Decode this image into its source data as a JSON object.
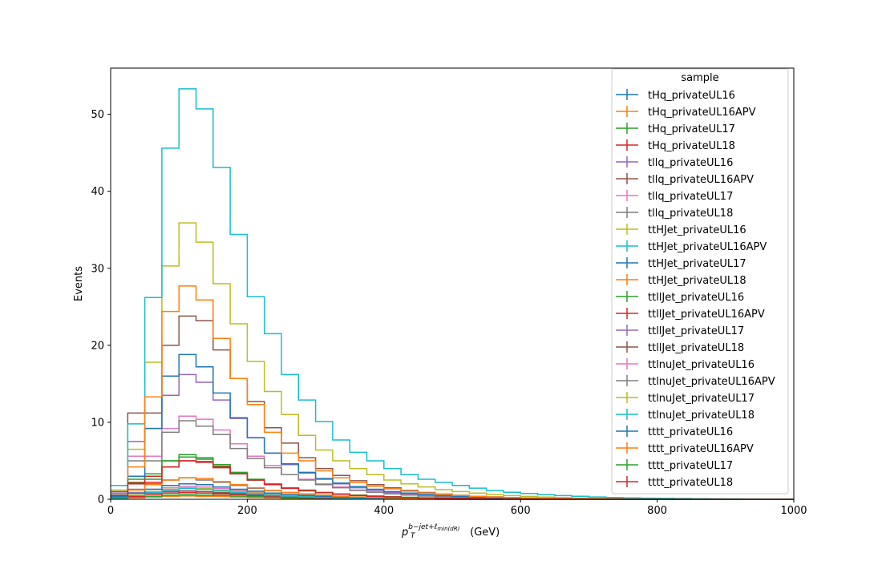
{
  "chart_data": {
    "type": "line",
    "step": true,
    "x_edges": [
      0,
      25,
      50,
      75,
      100,
      125,
      150,
      175,
      200,
      225,
      250,
      275,
      300,
      325,
      350,
      375,
      400,
      425,
      450,
      475,
      500,
      525,
      550,
      575,
      600,
      625,
      650,
      675,
      700,
      725,
      750,
      775,
      800,
      825,
      850,
      875,
      900,
      925,
      950,
      975,
      1000
    ],
    "xlim": [
      0,
      1000
    ],
    "ylim": [
      0,
      56
    ],
    "x_ticks": [
      0,
      200,
      400,
      600,
      800,
      1000
    ],
    "y_ticks": [
      0,
      10,
      20,
      30,
      40,
      50
    ],
    "ylabel": "Events",
    "xlabel_main": "p",
    "xlabel_sub": "T",
    "xlabel_sup": "b−jet+ℓ",
    "xlabel_sup_sub": "min(dR)",
    "xlabel_unit": " (GeV)",
    "legend_title": "sample",
    "legend_position": "top-right",
    "grid": false,
    "series": [
      {
        "name": "tHq_privateUL16",
        "color": "#1f77b4",
        "values": [
          0.1,
          0.2,
          0.3,
          0.4,
          0.45,
          0.42,
          0.38,
          0.32,
          0.26,
          0.2,
          0.15,
          0.11,
          0.08,
          0.06,
          0.04,
          0.03,
          0.02,
          0.02,
          0.01,
          0.01,
          0.01,
          0.01,
          0,
          0,
          0,
          0,
          0,
          0,
          0,
          0,
          0,
          0,
          0,
          0,
          0,
          0,
          0,
          0,
          0,
          0
        ]
      },
      {
        "name": "tHq_privateUL16APV",
        "color": "#ff7f0e",
        "values": [
          0.1,
          0.2,
          0.3,
          0.4,
          0.43,
          0.4,
          0.36,
          0.3,
          0.24,
          0.19,
          0.14,
          0.1,
          0.07,
          0.05,
          0.04,
          0.03,
          0.02,
          0.01,
          0.01,
          0.01,
          0.01,
          0,
          0,
          0,
          0,
          0,
          0,
          0,
          0,
          0,
          0,
          0,
          0,
          0,
          0,
          0,
          0,
          0,
          0,
          0
        ]
      },
      {
        "name": "tHq_privateUL17",
        "color": "#2ca02c",
        "values": [
          0.1,
          0.3,
          0.4,
          0.55,
          0.6,
          0.55,
          0.5,
          0.42,
          0.34,
          0.26,
          0.2,
          0.15,
          0.11,
          0.08,
          0.06,
          0.04,
          0.03,
          0.02,
          0.02,
          0.01,
          0.01,
          0.01,
          0,
          0,
          0,
          0,
          0,
          0,
          0,
          0,
          0,
          0,
          0,
          0,
          0,
          0,
          0,
          0,
          0,
          0
        ]
      },
      {
        "name": "tHq_privateUL18",
        "color": "#d62728",
        "values": [
          0.2,
          0.4,
          0.6,
          0.8,
          0.85,
          0.8,
          0.7,
          0.6,
          0.48,
          0.37,
          0.28,
          0.21,
          0.15,
          0.11,
          0.08,
          0.06,
          0.04,
          0.03,
          0.02,
          0.02,
          0.01,
          0.01,
          0.01,
          0,
          0,
          0,
          0,
          0,
          0,
          0,
          0,
          0,
          0,
          0,
          0,
          0,
          0,
          0,
          0,
          0
        ]
      },
      {
        "name": "tllq_privateUL16",
        "color": "#9467bd",
        "values": [
          0.2,
          0.5,
          0.8,
          1.0,
          1.1,
          1.0,
          0.9,
          0.75,
          0.6,
          0.45,
          0.35,
          0.27,
          0.2,
          0.15,
          0.11,
          0.08,
          0.06,
          0.04,
          0.03,
          0.02,
          0.02,
          0.01,
          0.01,
          0.01,
          0,
          0,
          0,
          0,
          0,
          0,
          0,
          0,
          0,
          0,
          0,
          0,
          0,
          0,
          0,
          0
        ]
      },
      {
        "name": "tllq_privateUL16APV",
        "color": "#8c564b",
        "values": [
          0.2,
          0.5,
          0.8,
          1.0,
          1.05,
          1.0,
          0.85,
          0.7,
          0.55,
          0.42,
          0.32,
          0.24,
          0.18,
          0.13,
          0.1,
          0.07,
          0.05,
          0.04,
          0.03,
          0.02,
          0.02,
          0.01,
          0.01,
          0,
          0,
          0,
          0,
          0,
          0,
          0,
          0,
          0,
          0,
          0,
          0,
          0,
          0,
          0,
          0,
          0
        ]
      },
      {
        "name": "tllq_privateUL17",
        "color": "#e377c2",
        "values": [
          0.3,
          0.9,
          1.3,
          1.5,
          1.7,
          1.6,
          1.4,
          1.15,
          0.9,
          0.7,
          0.55,
          0.42,
          0.32,
          0.24,
          0.18,
          0.13,
          0.1,
          0.07,
          0.05,
          0.04,
          0.03,
          0.02,
          0.02,
          0.01,
          0.01,
          0,
          0,
          0,
          0,
          0,
          0,
          0,
          0,
          0,
          0,
          0,
          0,
          0,
          0,
          0
        ]
      },
      {
        "name": "tllq_privateUL18",
        "color": "#7f7f7f",
        "values": [
          0.4,
          1.3,
          2.0,
          2.5,
          2.8,
          2.5,
          2.2,
          1.8,
          1.4,
          1.1,
          0.85,
          0.65,
          0.5,
          0.38,
          0.28,
          0.21,
          0.16,
          0.12,
          0.09,
          0.07,
          0.05,
          0.04,
          0.03,
          0.02,
          0.02,
          0.01,
          0.01,
          0,
          0,
          0,
          0,
          0,
          0,
          0,
          0,
          0,
          0,
          0,
          0,
          0
        ]
      },
      {
        "name": "ttHJet_privateUL16",
        "color": "#bcbd22",
        "values": [
          0.2,
          0.6,
          1.0,
          1.3,
          1.5,
          1.4,
          1.2,
          1.0,
          0.8,
          0.6,
          0.47,
          0.36,
          0.28,
          0.21,
          0.16,
          0.12,
          0.09,
          0.07,
          0.05,
          0.04,
          0.03,
          0.02,
          0.02,
          0.01,
          0.01,
          0,
          0,
          0,
          0,
          0,
          0,
          0,
          0,
          0,
          0,
          0,
          0,
          0,
          0,
          0
        ]
      },
      {
        "name": "ttHJet_privateUL16APV",
        "color": "#17becf",
        "values": [
          0.2,
          0.5,
          0.9,
          1.2,
          1.4,
          1.3,
          1.1,
          0.9,
          0.72,
          0.55,
          0.42,
          0.32,
          0.25,
          0.19,
          0.14,
          0.11,
          0.08,
          0.06,
          0.05,
          0.04,
          0.03,
          0.02,
          0.02,
          0.01,
          0.01,
          0,
          0,
          0,
          0,
          0,
          0,
          0,
          0,
          0,
          0,
          0,
          0,
          0,
          0,
          0
        ]
      },
      {
        "name": "ttHJet_privateUL17",
        "color": "#1f77b4",
        "values": [
          0.3,
          0.8,
          1.3,
          1.8,
          2.0,
          1.9,
          1.6,
          1.3,
          1.05,
          0.8,
          0.62,
          0.48,
          0.37,
          0.28,
          0.21,
          0.16,
          0.12,
          0.09,
          0.07,
          0.05,
          0.04,
          0.03,
          0.02,
          0.02,
          0.01,
          0.01,
          0,
          0,
          0,
          0,
          0,
          0,
          0,
          0,
          0,
          0,
          0,
          0,
          0,
          0
        ]
      },
      {
        "name": "ttHJet_privateUL18",
        "color": "#ff7f0e",
        "values": [
          0.4,
          1.2,
          1.9,
          2.5,
          2.8,
          2.7,
          2.3,
          1.9,
          1.5,
          1.15,
          0.9,
          0.7,
          0.54,
          0.41,
          0.31,
          0.23,
          0.18,
          0.13,
          0.1,
          0.08,
          0.06,
          0.05,
          0.04,
          0.03,
          0.02,
          0.02,
          0.01,
          0.01,
          0,
          0,
          0,
          0,
          0,
          0,
          0,
          0,
          0,
          0,
          0,
          0
        ]
      },
      {
        "name": "ttllJet_privateUL16",
        "color": "#2ca02c",
        "values": [
          0.5,
          2.2,
          3.3,
          5.0,
          5.5,
          5.2,
          4.5,
          3.5,
          2.6,
          2.0,
          1.5,
          1.2,
          0.9,
          0.7,
          0.55,
          0.43,
          0.34,
          0.26,
          0.2,
          0.16,
          0.12,
          0.09,
          0.07,
          0.05,
          0.04,
          0.03,
          0.02,
          0.02,
          0.01,
          0.01,
          0,
          0,
          0,
          0,
          0,
          0,
          0,
          0,
          0,
          0
        ]
      },
      {
        "name": "ttllJet_privateUL16APV",
        "color": "#d62728",
        "values": [
          0.5,
          2.0,
          3.0,
          4.2,
          5.0,
          4.9,
          4.1,
          3.3,
          2.5,
          1.9,
          1.45,
          1.1,
          0.85,
          0.65,
          0.5,
          0.4,
          0.31,
          0.24,
          0.19,
          0.15,
          0.11,
          0.09,
          0.07,
          0.05,
          0.04,
          0.03,
          0.02,
          0.02,
          0.01,
          0.01,
          0,
          0,
          0,
          0,
          0,
          0,
          0,
          0,
          0,
          0
        ]
      },
      {
        "name": "ttllJet_privateUL17",
        "color": "#9467bd",
        "values": [
          0.8,
          7.5,
          9.2,
          13.5,
          16.2,
          15.2,
          12.9,
          10.5,
          8.0,
          6.0,
          4.5,
          3.4,
          2.6,
          2.0,
          1.5,
          1.15,
          0.88,
          0.68,
          0.52,
          0.4,
          0.31,
          0.24,
          0.18,
          0.14,
          0.1,
          0.08,
          0.06,
          0.05,
          0.04,
          0.03,
          0.02,
          0.02,
          0.01,
          0.01,
          0.01,
          0,
          0,
          0,
          0,
          0
        ]
      },
      {
        "name": "ttllJet_privateUL18",
        "color": "#8c564b",
        "values": [
          1.0,
          11.2,
          11.2,
          20.0,
          23.8,
          23.2,
          19.4,
          15.7,
          12.7,
          9.3,
          7.3,
          5.4,
          4.0,
          3.1,
          2.4,
          1.9,
          1.5,
          1.15,
          0.88,
          0.68,
          0.52,
          0.4,
          0.31,
          0.24,
          0.18,
          0.14,
          0.11,
          0.08,
          0.06,
          0.05,
          0.04,
          0.03,
          0.02,
          0.02,
          0.01,
          0.01,
          0,
          0,
          0,
          0
        ]
      },
      {
        "name": "ttlnuJet_privateUL16",
        "color": "#e377c2",
        "values": [
          0.6,
          5.6,
          5.6,
          9.2,
          10.8,
          10.4,
          9.0,
          7.2,
          5.6,
          4.4,
          3.2,
          2.6,
          2.0,
          1.6,
          1.2,
          0.95,
          0.75,
          0.58,
          0.45,
          0.35,
          0.27,
          0.21,
          0.16,
          0.12,
          0.09,
          0.07,
          0.05,
          0.04,
          0.03,
          0.02,
          0.02,
          0.01,
          0.01,
          0.01,
          0,
          0,
          0,
          0,
          0,
          0
        ]
      },
      {
        "name": "ttlnuJet_privateUL16APV",
        "color": "#7f7f7f",
        "values": [
          0.6,
          5.0,
          5.0,
          8.7,
          10.2,
          9.5,
          8.4,
          6.6,
          5.3,
          4.1,
          3.2,
          2.5,
          1.9,
          1.5,
          1.15,
          0.9,
          0.7,
          0.55,
          0.42,
          0.33,
          0.26,
          0.2,
          0.15,
          0.12,
          0.09,
          0.07,
          0.05,
          0.04,
          0.03,
          0.02,
          0.02,
          0.01,
          0.01,
          0.01,
          0,
          0,
          0,
          0,
          0,
          0
        ]
      },
      {
        "name": "ttlnuJet_privateUL17",
        "color": "#bcbd22",
        "values": [
          1.2,
          6.5,
          17.8,
          30.3,
          35.9,
          33.4,
          28.0,
          22.8,
          17.9,
          14.0,
          11.0,
          8.3,
          6.4,
          5.0,
          4.0,
          3.2,
          2.5,
          2.0,
          1.6,
          1.25,
          1.0,
          0.8,
          0.62,
          0.48,
          0.37,
          0.29,
          0.22,
          0.17,
          0.13,
          0.1,
          0.08,
          0.06,
          0.05,
          0.04,
          0.03,
          0.02,
          0.02,
          0.01,
          0.01,
          0.01
        ]
      },
      {
        "name": "ttlnuJet_privateUL18",
        "color": "#17becf",
        "values": [
          1.8,
          9.8,
          26.2,
          45.6,
          53.3,
          50.7,
          43.1,
          34.4,
          26.3,
          21.5,
          16.2,
          12.9,
          10.1,
          7.7,
          6.1,
          5.0,
          4.0,
          3.2,
          2.6,
          2.2,
          1.8,
          1.45,
          1.15,
          0.92,
          0.75,
          0.6,
          0.48,
          0.38,
          0.3,
          0.24,
          0.19,
          0.15,
          0.12,
          0.1,
          0.08,
          0.06,
          0.05,
          0.04,
          0.03,
          0.02
        ]
      },
      {
        "name": "tttt_privateUL16",
        "color": "#1f77b4",
        "values": [
          0.4,
          3.0,
          9.2,
          16.0,
          18.8,
          17.2,
          13.8,
          10.6,
          8.0,
          6.0,
          4.6,
          3.5,
          2.7,
          2.1,
          1.65,
          1.3,
          1.0,
          0.8,
          0.62,
          0.48,
          0.38,
          0.3,
          0.23,
          0.18,
          0.14,
          0.11,
          0.08,
          0.06,
          0.05,
          0.04,
          0.03,
          0.02,
          0.02,
          0.01,
          0.01,
          0.01,
          0,
          0,
          0,
          0
        ]
      },
      {
        "name": "tttt_privateUL16APV",
        "color": "#ff7f0e",
        "values": [
          0.5,
          4.2,
          13.3,
          24.4,
          27.7,
          25.9,
          20.9,
          15.7,
          12.3,
          8.7,
          6.0,
          5.0,
          3.7,
          2.8,
          2.15,
          1.7,
          1.35,
          1.05,
          0.82,
          0.64,
          0.5,
          0.39,
          0.3,
          0.23,
          0.18,
          0.14,
          0.11,
          0.08,
          0.06,
          0.05,
          0.04,
          0.03,
          0.02,
          0.02,
          0.01,
          0.01,
          0,
          0,
          0,
          0
        ]
      },
      {
        "name": "tttt_privateUL17",
        "color": "#2ca02c",
        "values": [
          0.5,
          2.6,
          2.6,
          5.0,
          5.8,
          5.4,
          4.3,
          3.4,
          2.5,
          1.9,
          1.45,
          1.1,
          0.85,
          0.65,
          0.5,
          0.39,
          0.3,
          0.23,
          0.18,
          0.14,
          0.11,
          0.08,
          0.06,
          0.05,
          0.04,
          0.03,
          0.02,
          0.02,
          0.01,
          0.01,
          0,
          0,
          0,
          0,
          0,
          0,
          0,
          0,
          0,
          0
        ]
      },
      {
        "name": "tttt_privateUL18",
        "color": "#d62728",
        "values": [
          0.5,
          2.1,
          2.2,
          4.2,
          5.0,
          4.8,
          4.2,
          3.3,
          2.5,
          1.9,
          1.4,
          1.1,
          0.85,
          0.65,
          0.5,
          0.39,
          0.3,
          0.23,
          0.18,
          0.14,
          0.11,
          0.08,
          0.06,
          0.05,
          0.04,
          0.03,
          0.02,
          0.02,
          0.01,
          0.01,
          0,
          0,
          0,
          0,
          0,
          0,
          0,
          0,
          0,
          0
        ]
      }
    ]
  }
}
